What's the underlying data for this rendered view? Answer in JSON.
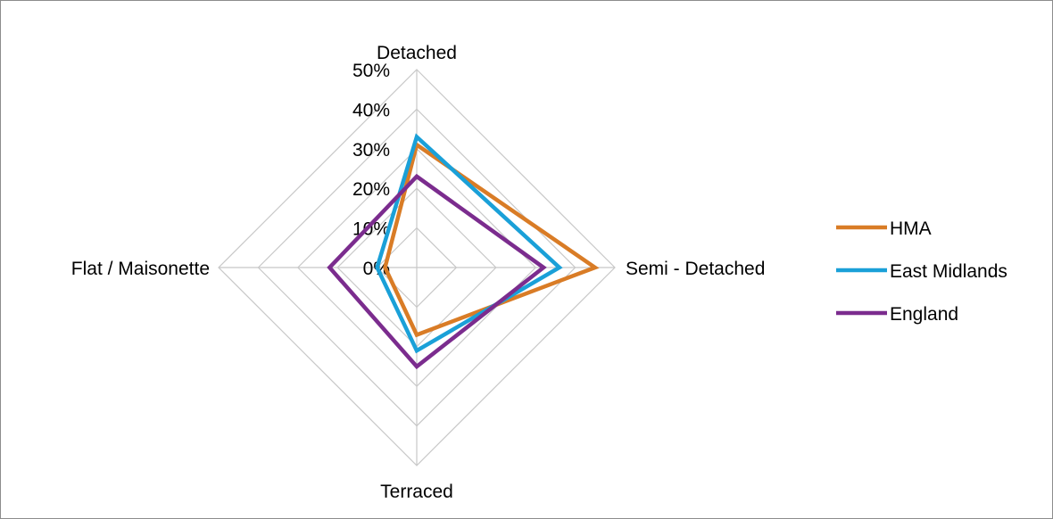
{
  "chart_data": {
    "type": "radar",
    "categories": [
      "Detached",
      "Semi - Detached",
      "Terraced",
      "Flat / Maisonette"
    ],
    "radial_ticks": [
      "0%",
      "10%",
      "20%",
      "30%",
      "40%",
      "50%"
    ],
    "radial_range": [
      0,
      50
    ],
    "grid": true,
    "legend_position": "right",
    "series": [
      {
        "name": "HMA",
        "color": "#D97C26",
        "values": [
          31,
          45,
          17,
          8
        ]
      },
      {
        "name": "East Midlands",
        "color": "#1AA0D8",
        "values": [
          33,
          36,
          21,
          10
        ]
      },
      {
        "name": "England",
        "color": "#7B2C8E",
        "values": [
          23,
          32,
          25,
          22
        ]
      }
    ]
  }
}
